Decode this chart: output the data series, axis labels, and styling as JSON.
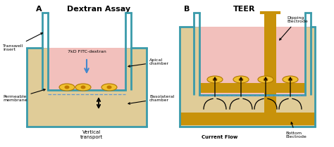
{
  "bg_color": "#ffffff",
  "teal": "#3a9aaa",
  "gold": "#c8920a",
  "pink": "#f2c0bc",
  "beige": "#e0cc98",
  "cell_color": "#f0c030",
  "cell_edge": "#b07800",
  "cell_nucleus": "#c07800",
  "blue_arrow": "#4488cc",
  "mem_dash": "#6699cc",
  "title_A": "Dextran Assay",
  "title_B": "TEER",
  "label_A": "A",
  "label_B": "B",
  "label_transwell": "Transwell\ninsert",
  "label_permeable": "Permeable\nmembrane",
  "label_apical": "Apical\nchamber",
  "label_basolateral": "Basolateral\nchamber",
  "label_fitc": "7kD FITC-dextran",
  "label_vertical": "Vertical\ntransport",
  "label_dipping": "Dipping\nElectrode",
  "label_bottom": "Bottom\nElectrode",
  "label_current": "Current Flow",
  "figsize": [
    4.74,
    2.09
  ],
  "dpi": 100
}
